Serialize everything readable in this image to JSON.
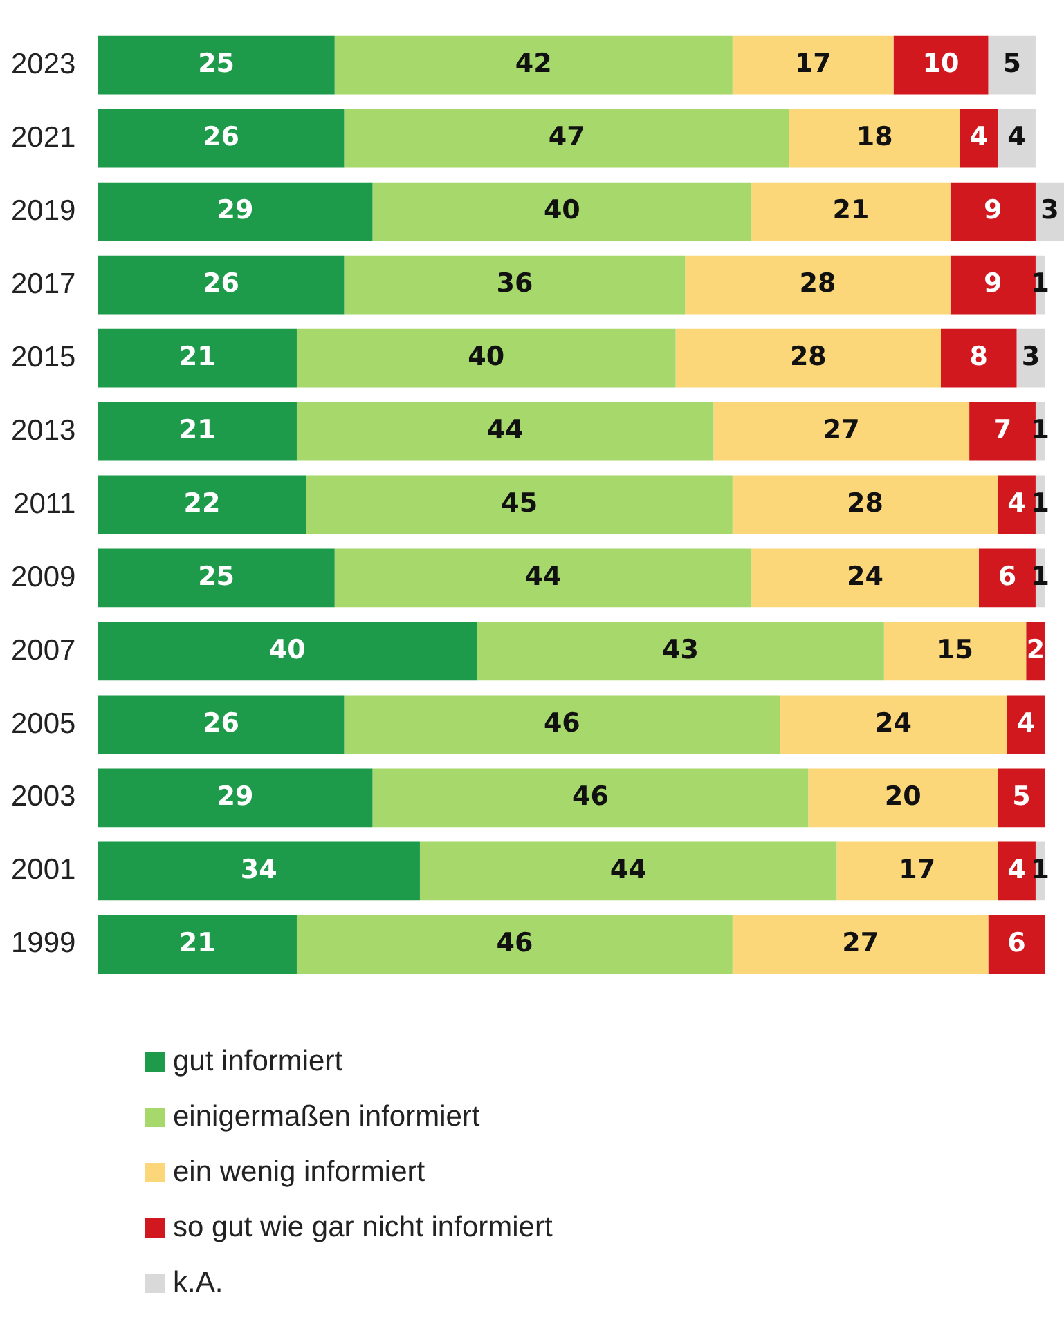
{
  "chart_data": {
    "type": "bar",
    "orientation": "horizontal",
    "stacked": true,
    "data_labels": true,
    "legend": "bottom",
    "xlim": [
      0,
      102
    ],
    "categories": [
      "2023",
      "2021",
      "2019",
      "2017",
      "2015",
      "2013",
      "2011",
      "2009",
      "2007",
      "2005",
      "2003",
      "2001",
      "1999"
    ],
    "series": [
      {
        "name": "gut informiert",
        "color": "#1e9a4b",
        "values": [
          25,
          26,
          29,
          26,
          21,
          21,
          22,
          25,
          40,
          26,
          29,
          34,
          21
        ]
      },
      {
        "name": "einigermaßen informiert",
        "color": "#a6d86b",
        "values": [
          42,
          47,
          40,
          36,
          40,
          44,
          45,
          44,
          43,
          46,
          46,
          44,
          46
        ]
      },
      {
        "name": "ein wenig informiert",
        "color": "#fcd77a",
        "values": [
          17,
          18,
          21,
          28,
          28,
          27,
          28,
          24,
          15,
          24,
          20,
          17,
          27
        ]
      },
      {
        "name": "so gut wie gar nicht informiert",
        "color": "#d0181e",
        "values": [
          10,
          4,
          9,
          9,
          8,
          7,
          4,
          6,
          2,
          4,
          5,
          4,
          6
        ]
      },
      {
        "name": "k.A.",
        "color": "#d9d9d9",
        "values": [
          5,
          4,
          3,
          1,
          3,
          1,
          1,
          1,
          null,
          null,
          null,
          1,
          null
        ]
      }
    ]
  }
}
